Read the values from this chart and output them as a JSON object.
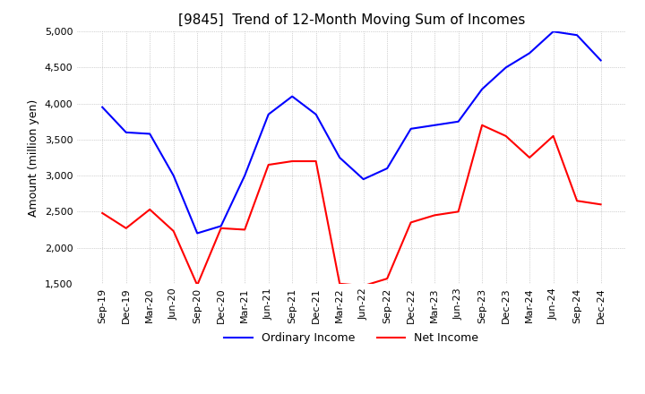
{
  "title": "[9845]  Trend of 12-Month Moving Sum of Incomes",
  "ylabel": "Amount (million yen)",
  "ylim": [
    1500,
    5000
  ],
  "yticks": [
    1500,
    2000,
    2500,
    3000,
    3500,
    4000,
    4500,
    5000
  ],
  "x_labels": [
    "Sep-19",
    "Dec-19",
    "Mar-20",
    "Jun-20",
    "Sep-20",
    "Dec-20",
    "Mar-21",
    "Jun-21",
    "Sep-21",
    "Dec-21",
    "Mar-22",
    "Jun-22",
    "Sep-22",
    "Dec-22",
    "Mar-23",
    "Jun-23",
    "Sep-23",
    "Dec-23",
    "Mar-24",
    "Jun-24",
    "Sep-24",
    "Dec-24"
  ],
  "ordinary_income": [
    3950,
    3600,
    3580,
    3000,
    2200,
    2300,
    3000,
    3850,
    4100,
    3850,
    3250,
    2950,
    3100,
    3650,
    3700,
    3750,
    4200,
    4500,
    4700,
    5000,
    4950,
    4600
  ],
  "net_income": [
    2480,
    2270,
    2530,
    2230,
    1480,
    2270,
    2250,
    3150,
    3200,
    3200,
    1500,
    1470,
    1570,
    2350,
    2450,
    2500,
    3700,
    3550,
    3250,
    3550,
    2650,
    2600
  ],
  "ordinary_color": "#0000FF",
  "net_color": "#FF0000",
  "line_width": 1.5,
  "background_color": "#FFFFFF",
  "grid_color": "#AAAAAA",
  "title_fontsize": 11,
  "label_fontsize": 9,
  "tick_fontsize": 8,
  "legend_fontsize": 9
}
